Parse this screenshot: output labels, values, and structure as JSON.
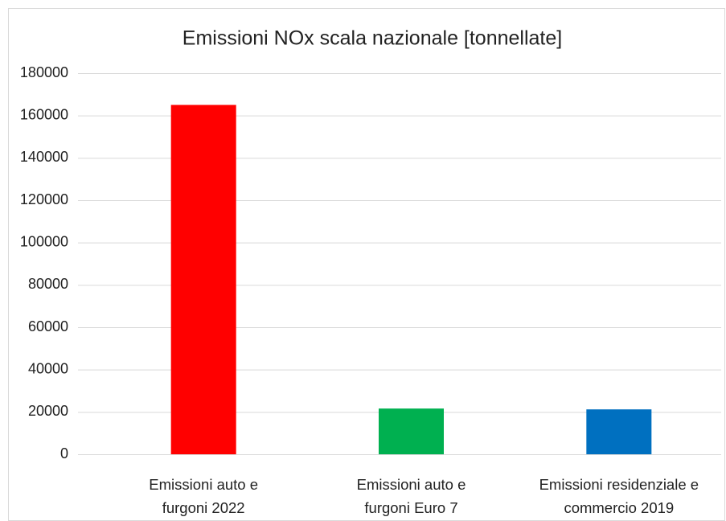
{
  "chart_data": {
    "type": "bar",
    "title": "Emissioni NOx scala nazionale [tonnellate]",
    "categories": [
      "Emissioni auto e furgoni 2022",
      "Emissioni auto e furgoni Euro 7",
      "Emissioni residenziale e commercio 2019"
    ],
    "values": [
      165000,
      21600,
      21200
    ],
    "colors": [
      "#ff0000",
      "#00b050",
      "#0070c0"
    ],
    "ylim": [
      0,
      180000
    ],
    "yticks": [
      0,
      20000,
      40000,
      60000,
      80000,
      100000,
      120000,
      140000,
      160000,
      180000
    ],
    "grid": true
  }
}
